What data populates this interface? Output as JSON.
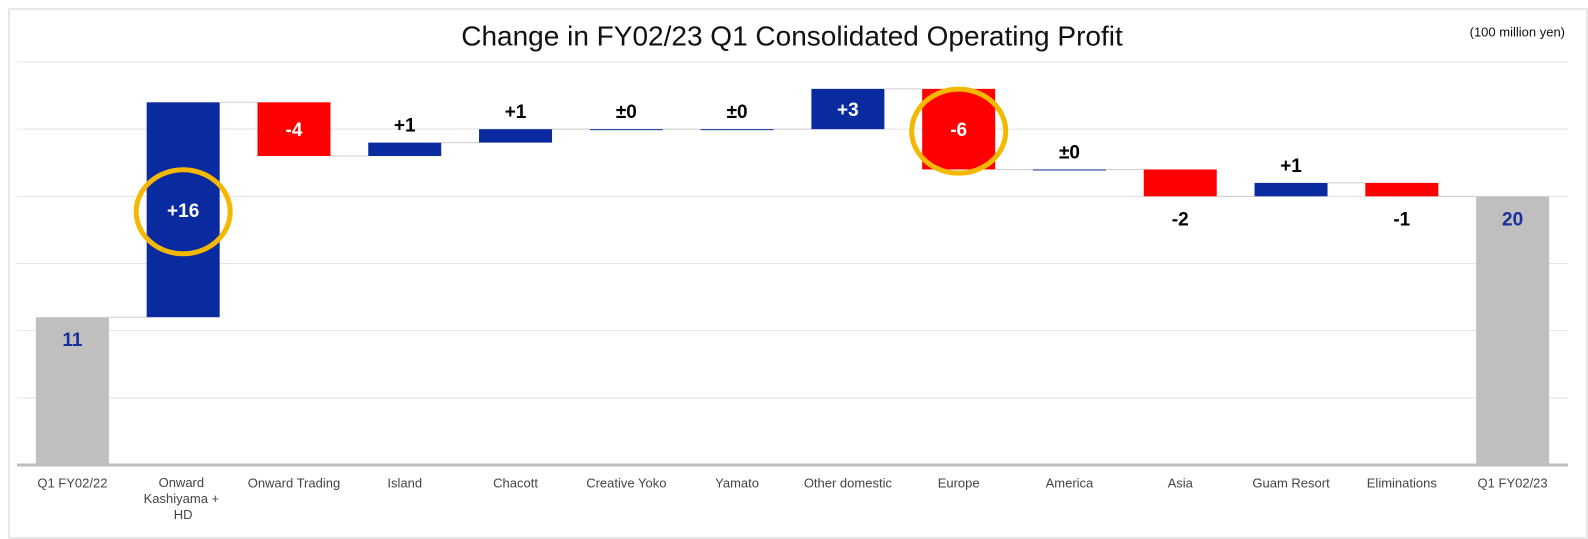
{
  "chart_data": {
    "type": "waterfall",
    "title": "Change in FY02/23 Q1 Consolidated Operating Profit",
    "unit_note": "(100 million yen)",
    "categories": [
      "Q1 FY02/22",
      "Onward Kashiyama + HD",
      "Onward Trading",
      "Island",
      "Chacott",
      "Creative Yoko",
      "Yamato",
      "Other domestic",
      "Europe",
      "America",
      "Asia",
      "Guam Resort",
      "Eliminations",
      "Q1 FY02/23"
    ],
    "values": [
      11,
      16,
      -4,
      1,
      1,
      0,
      0,
      3,
      -6,
      0,
      -2,
      1,
      -1,
      20
    ],
    "value_labels": [
      "11",
      "+16",
      "-4",
      "+1",
      "+1",
      "±0",
      "±0",
      "+3",
      "-6",
      "±0",
      "-2",
      "+1",
      "-1",
      "20"
    ],
    "totals": [
      0,
      13
    ],
    "colors": {
      "total": "#bfbfbf",
      "increase": "#0a2aa0",
      "decrease": "#ff0000",
      "total_label": "#1a2f9a"
    },
    "highlighted": [
      1,
      8
    ],
    "highlight_color": "#f5b800",
    "ylim": [
      0,
      30
    ],
    "yticks": [
      0,
      5,
      10,
      15,
      20,
      25,
      30
    ],
    "grid": true
  }
}
